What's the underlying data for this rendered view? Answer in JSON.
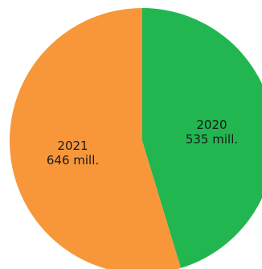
{
  "chart_data": {
    "type": "pie",
    "title": "",
    "start_angle_deg": 0,
    "direction": "clockwise",
    "slices": [
      {
        "label": "2020",
        "value": 535,
        "value_label": "535 mill.",
        "color": "#22b650"
      },
      {
        "label": "2021",
        "value": 646,
        "value_label": "646 mill.",
        "color": "#f7973a"
      }
    ]
  }
}
